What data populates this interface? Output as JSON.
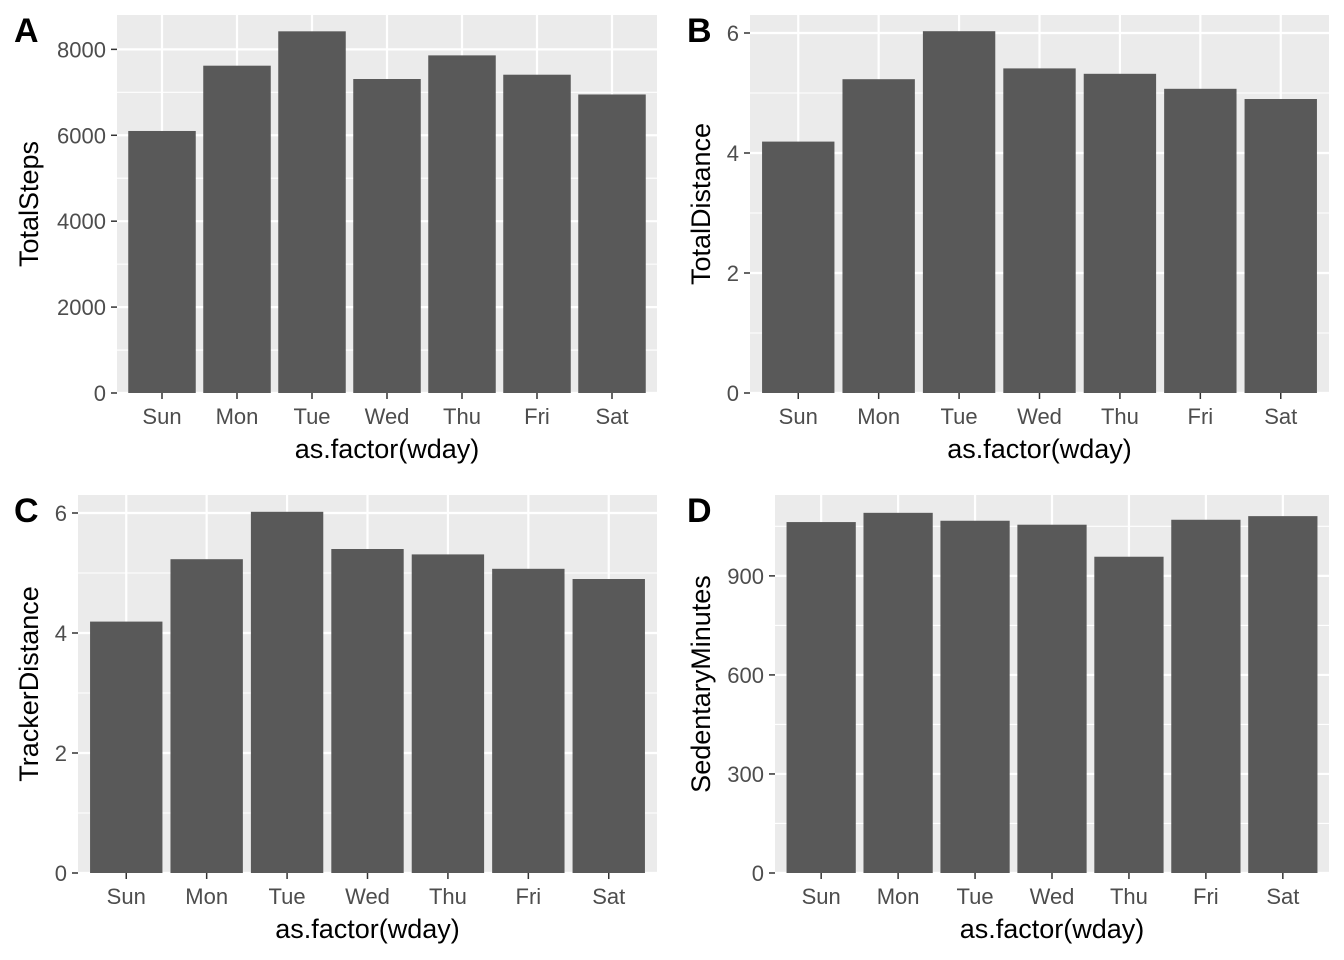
{
  "colors": {
    "panel_background": "#ebebeb",
    "grid_line": "#ffffff",
    "bar_fill": "#595959",
    "tick_mark": "#333333"
  },
  "chart_data": [
    {
      "type": "bar",
      "tag": "A",
      "categories": [
        "Sun",
        "Mon",
        "Tue",
        "Wed",
        "Thu",
        "Fri",
        "Sat"
      ],
      "values": [
        6100,
        7620,
        8420,
        7310,
        7860,
        7410,
        6950
      ],
      "xlabel": "as.factor(wday)",
      "ylabel": "TotalSteps",
      "ylim": [
        0,
        8800
      ],
      "yticks": [
        0,
        2000,
        4000,
        6000,
        8000
      ],
      "ytick_labels": [
        "0",
        "2000",
        "4000",
        "6000",
        "8000"
      ],
      "grid": true,
      "legend": "none"
    },
    {
      "type": "bar",
      "tag": "B",
      "categories": [
        "Sun",
        "Mon",
        "Tue",
        "Wed",
        "Thu",
        "Fri",
        "Sat"
      ],
      "values": [
        4.19,
        5.23,
        6.03,
        5.41,
        5.32,
        5.07,
        4.9
      ],
      "xlabel": "as.factor(wday)",
      "ylabel": "TotalDistance",
      "ylim": [
        0,
        6.3
      ],
      "yticks": [
        0,
        2,
        4,
        6
      ],
      "ytick_labels": [
        "0",
        "2",
        "4",
        "6"
      ],
      "grid": true,
      "legend": "none"
    },
    {
      "type": "bar",
      "tag": "C",
      "categories": [
        "Sun",
        "Mon",
        "Tue",
        "Wed",
        "Thu",
        "Fri",
        "Sat"
      ],
      "values": [
        4.19,
        5.23,
        6.02,
        5.4,
        5.31,
        5.07,
        4.9
      ],
      "xlabel": "as.factor(wday)",
      "ylabel": "TrackerDistance",
      "ylim": [
        0,
        6.3
      ],
      "yticks": [
        0,
        2,
        4,
        6
      ],
      "ytick_labels": [
        "0",
        "2",
        "4",
        "6"
      ],
      "grid": true,
      "legend": "none"
    },
    {
      "type": "bar",
      "tag": "D",
      "categories": [
        "Sun",
        "Mon",
        "Tue",
        "Wed",
        "Thu",
        "Fri",
        "Sat"
      ],
      "values": [
        1063,
        1091,
        1067,
        1055,
        958,
        1070,
        1081
      ],
      "xlabel": "as.factor(wday)",
      "ylabel": "SedentaryMinutes",
      "ylim": [
        0,
        1145
      ],
      "yticks": [
        0,
        300,
        600,
        900
      ],
      "ytick_labels": [
        "0",
        "300",
        "600",
        "900"
      ],
      "grid": true,
      "legend": "none"
    }
  ]
}
